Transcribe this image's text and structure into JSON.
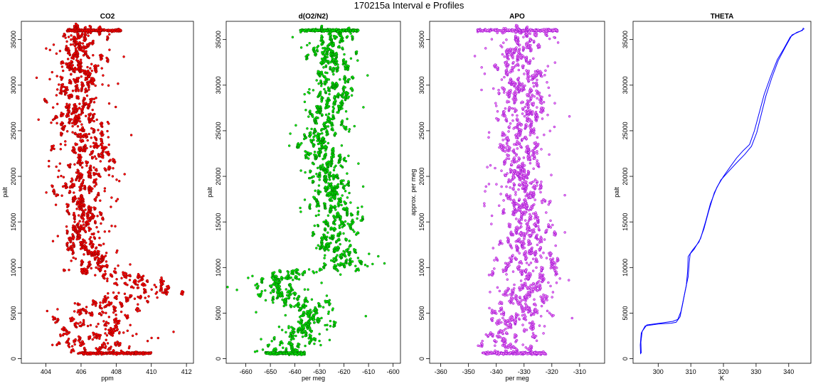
{
  "figure": {
    "title": "170215a   Interval e Profiles"
  },
  "chart_data": [
    {
      "type": "scatter",
      "title": "CO2",
      "xlabel": "ppm",
      "ylabel": "palt",
      "xlim": [
        402.6,
        412.4
      ],
      "ylim": [
        -500,
        37000
      ],
      "xticks": [
        404,
        406,
        408,
        410,
        412
      ],
      "yticks": [
        0,
        5000,
        10000,
        15000,
        20000,
        25000,
        30000,
        35000
      ],
      "grid": false,
      "color": "#ff0000",
      "outline_color": "#8b0000",
      "profile": [
        [
          0,
          407.5,
          1.5
        ],
        [
          500,
          406.5,
          1.2
        ],
        [
          1000,
          407.3,
          1.2
        ],
        [
          1500,
          407.0,
          1.3
        ],
        [
          2000,
          407.0,
          1.2
        ],
        [
          2500,
          407.4,
          1.2
        ],
        [
          3000,
          406.8,
          1.2
        ],
        [
          3500,
          406.7,
          1.2
        ],
        [
          4000,
          406.9,
          1.1
        ],
        [
          4500,
          406.8,
          1.1
        ],
        [
          5000,
          407.2,
          1.1
        ],
        [
          5500,
          406.9,
          1.0
        ],
        [
          6000,
          407.5,
          1.0
        ],
        [
          6500,
          408.9,
          0.9
        ],
        [
          7000,
          409.9,
          0.9
        ],
        [
          7500,
          409.7,
          0.8
        ],
        [
          8000,
          409.4,
          0.9
        ],
        [
          8500,
          408.8,
          0.9
        ],
        [
          9000,
          408.2,
          0.8
        ],
        [
          9500,
          407.2,
          0.8
        ],
        [
          10000,
          406.6,
          0.6
        ],
        [
          11000,
          406.4,
          0.5
        ],
        [
          12000,
          406.2,
          0.5
        ],
        [
          13000,
          406.2,
          0.5
        ],
        [
          14000,
          406.1,
          0.5
        ],
        [
          15000,
          406.1,
          0.5
        ],
        [
          16000,
          406.0,
          0.6
        ],
        [
          17000,
          406.1,
          0.6
        ],
        [
          18000,
          406.0,
          0.6
        ],
        [
          19000,
          405.9,
          0.6
        ],
        [
          20000,
          406.1,
          0.7
        ],
        [
          21000,
          406.2,
          0.7
        ],
        [
          22000,
          406.2,
          0.7
        ],
        [
          23000,
          406.3,
          0.7
        ],
        [
          24000,
          406.2,
          0.7
        ],
        [
          25000,
          406.0,
          0.7
        ],
        [
          26000,
          405.8,
          0.7
        ],
        [
          27000,
          405.6,
          0.7
        ],
        [
          28000,
          405.6,
          0.7
        ],
        [
          29000,
          405.8,
          0.7
        ],
        [
          30000,
          405.9,
          0.7
        ],
        [
          31000,
          406.0,
          0.7
        ],
        [
          32000,
          406.0,
          0.7
        ],
        [
          33000,
          406.1,
          0.7
        ],
        [
          34000,
          406.0,
          0.6
        ],
        [
          35000,
          406.0,
          0.6
        ],
        [
          36000,
          406.0,
          0.6
        ]
      ],
      "lev_top": {
        "palt": 36000,
        "x_from": 405.2,
        "x_to": 408.3
      },
      "lev_bottom": {
        "palt": 600,
        "x_from": 405.8,
        "x_to": 410.0
      }
    },
    {
      "type": "scatter",
      "title": "d(O2/N2)",
      "xlabel": "per meg",
      "ylabel": "palt",
      "xlim": [
        -668,
        -597
      ],
      "ylim": [
        -500,
        37000
      ],
      "xticks": [
        -660,
        -650,
        -640,
        -630,
        -620,
        -610,
        -600
      ],
      "yticks": [
        0,
        5000,
        10000,
        15000,
        20000,
        25000,
        30000,
        35000
      ],
      "grid": false,
      "color": "#00ee00",
      "outline_color": "#006400",
      "profile": [
        [
          0,
          -641,
          6
        ],
        [
          500,
          -645,
          5
        ],
        [
          1000,
          -642,
          5
        ],
        [
          1500,
          -641,
          5
        ],
        [
          2000,
          -640,
          5
        ],
        [
          2500,
          -638,
          5
        ],
        [
          3000,
          -636,
          5
        ],
        [
          3500,
          -633,
          5
        ],
        [
          4000,
          -632,
          5
        ],
        [
          4500,
          -634,
          5
        ],
        [
          5000,
          -633,
          5
        ],
        [
          5500,
          -636,
          5
        ],
        [
          6000,
          -640,
          6
        ],
        [
          6500,
          -642,
          6
        ],
        [
          7000,
          -645,
          6
        ],
        [
          7500,
          -648,
          6
        ],
        [
          8000,
          -650,
          5
        ],
        [
          8500,
          -645,
          5
        ],
        [
          9000,
          -639,
          5
        ],
        [
          9500,
          -628,
          6
        ],
        [
          10000,
          -620,
          5
        ],
        [
          11000,
          -622,
          4
        ],
        [
          12000,
          -624,
          4
        ],
        [
          13000,
          -624,
          4
        ],
        [
          14000,
          -622,
          4
        ],
        [
          15000,
          -623,
          4
        ],
        [
          16000,
          -625,
          4
        ],
        [
          17000,
          -625,
          4
        ],
        [
          18000,
          -626,
          4
        ],
        [
          19000,
          -626,
          4
        ],
        [
          20000,
          -627,
          4
        ],
        [
          21000,
          -627,
          4
        ],
        [
          22000,
          -629,
          4
        ],
        [
          23000,
          -630,
          4
        ],
        [
          24000,
          -631,
          4
        ],
        [
          25000,
          -629,
          4
        ],
        [
          26000,
          -627,
          4
        ],
        [
          27000,
          -625,
          4
        ],
        [
          28000,
          -624,
          4
        ],
        [
          29000,
          -625,
          4
        ],
        [
          30000,
          -624,
          4
        ],
        [
          31000,
          -625,
          4
        ],
        [
          32000,
          -624,
          4
        ],
        [
          33000,
          -626,
          4
        ],
        [
          34000,
          -625,
          4
        ],
        [
          35000,
          -624,
          4
        ],
        [
          36000,
          -625,
          4
        ]
      ],
      "lev_top": {
        "palt": 36000,
        "x_from": -638,
        "x_to": -614
      },
      "lev_bottom": {
        "palt": 600,
        "x_from": -652,
        "x_to": -636
      }
    },
    {
      "type": "scatter",
      "title": "APO",
      "xlabel": "per meg",
      "ylabel": "approx. per meg",
      "xlim": [
        -364,
        -301
      ],
      "ylim": [
        -500,
        37000
      ],
      "xticks": [
        -360,
        -350,
        -340,
        -330,
        -320,
        -310
      ],
      "yticks": [
        0,
        5000,
        10000,
        15000,
        20000,
        25000,
        30000,
        35000
      ],
      "grid": false,
      "color": "#ee82ee",
      "outline_color": "#9400d3",
      "profile": [
        [
          0,
          -338,
          5
        ],
        [
          500,
          -337,
          5
        ],
        [
          1000,
          -336,
          5
        ],
        [
          1500,
          -336,
          5
        ],
        [
          2000,
          -335,
          5
        ],
        [
          2500,
          -334,
          5
        ],
        [
          3000,
          -333,
          5
        ],
        [
          3500,
          -333,
          5
        ],
        [
          4000,
          -333,
          5
        ],
        [
          4500,
          -332,
          5
        ],
        [
          5000,
          -332,
          5
        ],
        [
          5500,
          -333,
          5
        ],
        [
          6000,
          -331,
          5
        ],
        [
          6500,
          -331,
          5
        ],
        [
          7000,
          -330,
          5
        ],
        [
          7500,
          -330,
          5
        ],
        [
          8000,
          -330,
          5
        ],
        [
          8500,
          -329,
          5
        ],
        [
          9000,
          -327,
          5
        ],
        [
          9500,
          -326,
          5
        ],
        [
          10000,
          -326,
          5
        ],
        [
          11000,
          -328,
          4
        ],
        [
          12000,
          -329,
          4
        ],
        [
          13000,
          -329,
          4
        ],
        [
          14000,
          -328,
          4
        ],
        [
          15000,
          -328,
          4
        ],
        [
          16000,
          -330,
          4
        ],
        [
          17000,
          -330,
          4
        ],
        [
          18000,
          -330,
          4
        ],
        [
          19000,
          -331,
          4
        ],
        [
          20000,
          -331,
          4
        ],
        [
          21000,
          -331,
          4
        ],
        [
          22000,
          -331,
          4
        ],
        [
          23000,
          -332,
          4
        ],
        [
          24000,
          -332,
          4
        ],
        [
          25000,
          -331,
          4
        ],
        [
          26000,
          -331,
          4
        ],
        [
          27000,
          -330,
          4
        ],
        [
          28000,
          -330,
          4
        ],
        [
          29000,
          -330,
          4
        ],
        [
          30000,
          -330,
          4
        ],
        [
          31000,
          -330,
          4
        ],
        [
          32000,
          -331,
          4
        ],
        [
          33000,
          -331,
          4
        ],
        [
          34000,
          -330,
          4
        ],
        [
          35000,
          -329,
          4
        ],
        [
          36000,
          -330,
          4
        ]
      ],
      "lev_top": {
        "palt": 36000,
        "x_from": -347,
        "x_to": -318
      },
      "lev_bottom": {
        "palt": 600,
        "x_from": -345,
        "x_to": -322
      }
    },
    {
      "type": "line",
      "title": "THETA",
      "xlabel": "K",
      "ylabel": "palt",
      "xlim": [
        292.3,
        346.8
      ],
      "ylim": [
        -500,
        37000
      ],
      "xticks": [
        300,
        310,
        320,
        330,
        340
      ],
      "yticks": [
        0,
        5000,
        10000,
        15000,
        20000,
        25000,
        30000,
        35000
      ],
      "grid": false,
      "color": "#0000ff",
      "series": [
        {
          "points": [
            [
              294.6,
              500
            ],
            [
              294.5,
              1500
            ],
            [
              294.8,
              2800
            ],
            [
              296.0,
              3600
            ],
            [
              300.0,
              3800
            ],
            [
              304.0,
              3900
            ],
            [
              305.5,
              4000
            ],
            [
              306.7,
              4600
            ],
            [
              307.5,
              6000
            ],
            [
              308.3,
              7500
            ],
            [
              309.2,
              9000
            ],
            [
              309.5,
              10500
            ],
            [
              309.8,
              11500
            ],
            [
              311.0,
              12000
            ],
            [
              313.0,
              13200
            ],
            [
              314.5,
              15000
            ],
            [
              316.0,
              17000
            ],
            [
              318.0,
              18800
            ],
            [
              320.0,
              20000
            ],
            [
              322.0,
              21000
            ],
            [
              324.0,
              22000
            ],
            [
              326.0,
              22800
            ],
            [
              328.0,
              23500
            ],
            [
              329.5,
              25000
            ],
            [
              331.0,
              27000
            ],
            [
              332.5,
              29000
            ],
            [
              334.5,
              31000
            ],
            [
              336.5,
              32800
            ],
            [
              338.5,
              34000
            ],
            [
              340.5,
              35300
            ],
            [
              342.5,
              35800
            ],
            [
              344.2,
              36000
            ],
            [
              344.5,
              36300
            ]
          ]
        },
        {
          "points": [
            [
              294.8,
              600
            ],
            [
              294.7,
              1800
            ],
            [
              295.1,
              3000
            ],
            [
              296.5,
              3700
            ],
            [
              300.5,
              3900
            ],
            [
              304.5,
              4100
            ],
            [
              306.0,
              4300
            ],
            [
              307.0,
              5200
            ],
            [
              307.8,
              6600
            ],
            [
              308.6,
              8000
            ],
            [
              309.0,
              9500
            ],
            [
              309.2,
              11200
            ],
            [
              310.5,
              11900
            ],
            [
              312.5,
              12800
            ],
            [
              314.0,
              14200
            ],
            [
              315.5,
              16200
            ],
            [
              317.2,
              18200
            ],
            [
              319.2,
              19600
            ],
            [
              321.5,
              20500
            ],
            [
              323.8,
              21400
            ],
            [
              326.5,
              22400
            ],
            [
              328.6,
              23300
            ],
            [
              330.2,
              24800
            ],
            [
              331.6,
              26800
            ],
            [
              333.0,
              28800
            ],
            [
              334.8,
              30800
            ],
            [
              336.8,
              32700
            ],
            [
              339.0,
              34200
            ],
            [
              341.0,
              35500
            ],
            [
              343.5,
              35900
            ],
            [
              344.8,
              36200
            ]
          ]
        }
      ]
    }
  ]
}
